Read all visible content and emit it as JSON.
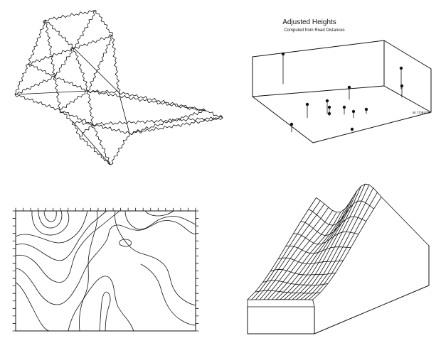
{
  "heights_panel": {
    "title": "Adjusted Heights",
    "subtitle": "Computed from Road Distances",
    "credit": "W. TOBLER"
  },
  "colors": {
    "ink": "#111111",
    "paper": "#ffffff"
  }
}
